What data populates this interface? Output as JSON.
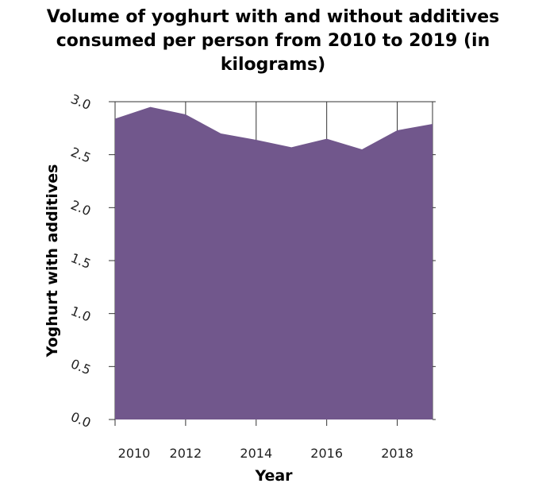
{
  "chart_data": {
    "type": "area",
    "title": "Volume of yoghurt with and without additives consumed per person from 2010 to 2019 (in kilograms)",
    "title_lines": [
      "Volume of yoghurt with and without additives",
      "consumed per person from 2010 to 2019 (in",
      "kilograms)"
    ],
    "xlabel": "Year",
    "ylabel": "Yoghurt with additives",
    "x": [
      2010,
      2011,
      2012,
      2013,
      2014,
      2015,
      2016,
      2017,
      2018,
      2019
    ],
    "series": [
      {
        "values": [
          2.84,
          2.95,
          2.88,
          2.7,
          2.64,
          2.57,
          2.65,
          2.55,
          2.73,
          2.79
        ]
      }
    ],
    "xlim": [
      2010,
      2019
    ],
    "ylim": [
      0,
      3.0
    ],
    "x_ticks": [
      2010,
      2012,
      2014,
      2016,
      2018
    ],
    "y_ticks": [
      "0.0",
      "0.5",
      "1.0",
      "1.5",
      "2.0",
      "2.5",
      "3.0"
    ],
    "fill_color": "#71578c",
    "grid": true
  }
}
